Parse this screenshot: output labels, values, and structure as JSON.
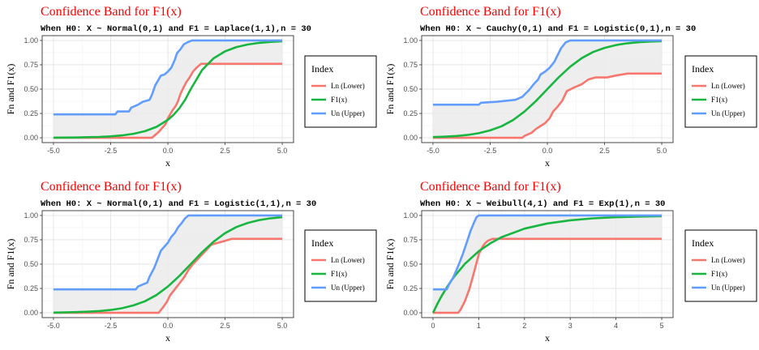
{
  "legend": {
    "title": "Index",
    "entries": [
      {
        "label": "Ln (Lower)",
        "color": "#f8766d"
      },
      {
        "label": "F1(x)",
        "color": "#18b640"
      },
      {
        "label": "Un (Upper)",
        "color": "#619cff"
      }
    ]
  },
  "colors": {
    "band_fill": "#ebebeb",
    "title": "#ff0000",
    "lower": "#f8766d",
    "f1": "#18b640",
    "upper": "#619cff"
  },
  "chart_data": [
    {
      "type": "line",
      "title": "Confidence Band for F1(x)",
      "subtitle": "When H0: X ~ Normal(0,1) and F1 = Laplace(1,1),n = 30",
      "xlabel": "x",
      "ylabel": "Fn and F1(x)",
      "xlim": [
        -5,
        5
      ],
      "ylim": [
        0,
        1
      ],
      "xticks": [
        -5,
        -2.5,
        0,
        2.5,
        5
      ],
      "xtick_labels": [
        "-5.0",
        "-2.5",
        "0.0",
        "2.5",
        "5.0"
      ],
      "yticks": [
        0,
        0.25,
        0.5,
        0.75,
        1
      ],
      "ytick_labels": [
        "0.00",
        "0.25",
        "0.50",
        "0.75",
        "1.00"
      ],
      "grid": true,
      "legend_position": "right",
      "series": [
        {
          "name": "Ln (Lower)",
          "x": [
            -5,
            -0.7,
            -0.55,
            -0.4,
            -0.25,
            -0.1,
            0.0,
            0.1,
            0.2,
            0.35,
            0.45,
            0.55,
            0.65,
            0.8,
            0.95,
            1.1,
            1.25,
            1.35,
            1.45,
            1.6,
            5
          ],
          "y": [
            0,
            0,
            0.03,
            0.06,
            0.1,
            0.14,
            0.2,
            0.24,
            0.28,
            0.33,
            0.38,
            0.45,
            0.5,
            0.57,
            0.62,
            0.68,
            0.72,
            0.74,
            0.76,
            0.76,
            0.76
          ]
        },
        {
          "name": "F1(x)",
          "x": [
            -5,
            -4.5,
            -4,
            -3.5,
            -3,
            -2.5,
            -2,
            -1.5,
            -1,
            -0.5,
            0,
            0.25,
            0.5,
            0.75,
            1,
            1.5,
            2,
            2.5,
            3,
            3.5,
            4,
            4.5,
            5
          ],
          "y": [
            0.001,
            0.002,
            0.003,
            0.006,
            0.009,
            0.015,
            0.025,
            0.041,
            0.068,
            0.112,
            0.184,
            0.236,
            0.303,
            0.389,
            0.5,
            0.697,
            0.816,
            0.888,
            0.932,
            0.959,
            0.975,
            0.985,
            0.991
          ]
        },
        {
          "name": "Un (Upper)",
          "x": [
            -5,
            -2.3,
            -2.2,
            -1.7,
            -1.6,
            -1.3,
            -1.1,
            -0.8,
            -0.7,
            -0.55,
            -0.4,
            -0.3,
            -0.15,
            0.0,
            0.15,
            0.3,
            0.4,
            0.55,
            0.7,
            0.85,
            1.05,
            1.3,
            1.5,
            5
          ],
          "y": [
            0.24,
            0.24,
            0.27,
            0.27,
            0.31,
            0.34,
            0.37,
            0.39,
            0.44,
            0.54,
            0.6,
            0.64,
            0.65,
            0.68,
            0.72,
            0.8,
            0.87,
            0.91,
            0.96,
            0.98,
            1.0,
            1.0,
            1.0,
            1.0
          ]
        }
      ]
    },
    {
      "type": "line",
      "title": "Confidence Band for F1(x)",
      "subtitle": "When H0: X ~ Cauchy(0,1) and F1 = Logistic(0,1),n = 30",
      "xlabel": "x",
      "ylabel": "Fn and F1(x)",
      "xlim": [
        -5,
        5
      ],
      "ylim": [
        0,
        1
      ],
      "xticks": [
        -5,
        -2.5,
        0,
        2.5,
        5
      ],
      "xtick_labels": [
        "-5.0",
        "-2.5",
        "0.0",
        "2.5",
        "5.0"
      ],
      "yticks": [
        0,
        0.25,
        0.5,
        0.75,
        1
      ],
      "ytick_labels": [
        "0.00",
        "0.25",
        "0.50",
        "0.75",
        "1.00"
      ],
      "grid": true,
      "legend_position": "right",
      "series": [
        {
          "name": "Ln (Lower)",
          "x": [
            -5,
            -1.1,
            -1.0,
            -0.7,
            -0.5,
            -0.3,
            -0.1,
            0.1,
            0.25,
            0.45,
            0.65,
            0.85,
            1.2,
            1.5,
            1.8,
            2.1,
            2.6,
            3.0,
            3.5,
            5
          ],
          "y": [
            0,
            0,
            0.02,
            0.05,
            0.09,
            0.12,
            0.15,
            0.2,
            0.27,
            0.32,
            0.38,
            0.48,
            0.52,
            0.55,
            0.6,
            0.62,
            0.62,
            0.64,
            0.66,
            0.66
          ]
        },
        {
          "name": "F1(x)",
          "x": [
            -5,
            -4.5,
            -4,
            -3.5,
            -3,
            -2.5,
            -2,
            -1.5,
            -1,
            -0.5,
            0,
            0.5,
            1,
            1.5,
            2,
            2.5,
            3,
            3.5,
            4,
            4.5,
            5
          ],
          "y": [
            0.007,
            0.011,
            0.018,
            0.029,
            0.047,
            0.076,
            0.119,
            0.182,
            0.269,
            0.378,
            0.5,
            0.622,
            0.731,
            0.818,
            0.881,
            0.924,
            0.953,
            0.971,
            0.982,
            0.989,
            0.993
          ]
        },
        {
          "name": "Un (Upper)",
          "x": [
            -5,
            -3.0,
            -2.9,
            -2.2,
            -1.4,
            -1.1,
            -0.8,
            -0.6,
            -0.4,
            -0.3,
            -0.1,
            0.1,
            0.3,
            0.45,
            0.6,
            0.8,
            1.0,
            5
          ],
          "y": [
            0.34,
            0.34,
            0.36,
            0.37,
            0.39,
            0.42,
            0.49,
            0.55,
            0.6,
            0.65,
            0.68,
            0.72,
            0.78,
            0.85,
            0.92,
            0.98,
            1.0,
            1.0
          ]
        }
      ]
    },
    {
      "type": "line",
      "title": "Confidence Band for F1(x)",
      "subtitle": "When H0: X ~ Normal(0,1) and F1 = Logistic(1,1),n = 30",
      "xlabel": "x",
      "ylabel": "Fn and F1(x)",
      "xlim": [
        -5,
        5
      ],
      "ylim": [
        0,
        1
      ],
      "xticks": [
        -5,
        -2.5,
        0,
        2.5,
        5
      ],
      "xtick_labels": [
        "-5.0",
        "-2.5",
        "0.0",
        "2.5",
        "5.0"
      ],
      "yticks": [
        0,
        0.25,
        0.5,
        0.75,
        1
      ],
      "ytick_labels": [
        "0.00",
        "0.25",
        "0.50",
        "0.75",
        "1.00"
      ],
      "grid": true,
      "legend_position": "right",
      "series": [
        {
          "name": "Ln (Lower)",
          "x": [
            -5,
            -0.4,
            -0.3,
            -0.2,
            -0.05,
            0.1,
            0.3,
            0.5,
            0.7,
            0.9,
            1.1,
            1.3,
            1.5,
            1.7,
            1.9,
            2.2,
            2.5,
            2.8,
            3.0,
            5
          ],
          "y": [
            0,
            0,
            0.03,
            0.06,
            0.11,
            0.18,
            0.24,
            0.3,
            0.36,
            0.44,
            0.5,
            0.55,
            0.6,
            0.65,
            0.7,
            0.72,
            0.74,
            0.76,
            0.76,
            0.76
          ]
        },
        {
          "name": "F1(x)",
          "x": [
            -5,
            -4.5,
            -4,
            -3.5,
            -3,
            -2.5,
            -2,
            -1.5,
            -1,
            -0.5,
            0,
            0.5,
            1,
            1.5,
            2,
            2.5,
            3,
            3.5,
            4,
            4.5,
            5
          ],
          "y": [
            0.002,
            0.004,
            0.007,
            0.011,
            0.018,
            0.029,
            0.047,
            0.076,
            0.119,
            0.182,
            0.269,
            0.378,
            0.5,
            0.622,
            0.731,
            0.818,
            0.881,
            0.924,
            0.953,
            0.971,
            0.982
          ]
        },
        {
          "name": "Un (Upper)",
          "x": [
            -5,
            -1.4,
            -1.3,
            -0.9,
            -0.8,
            -0.6,
            -0.5,
            -0.4,
            -0.3,
            -0.15,
            0.0,
            0.15,
            0.3,
            0.45,
            0.6,
            0.75,
            0.9,
            1.1,
            5
          ],
          "y": [
            0.24,
            0.24,
            0.27,
            0.31,
            0.37,
            0.46,
            0.52,
            0.58,
            0.64,
            0.68,
            0.72,
            0.78,
            0.82,
            0.88,
            0.92,
            0.97,
            1.0,
            1.0,
            1.0
          ]
        }
      ]
    },
    {
      "type": "line",
      "title": "Confidence Band for F1(x)",
      "subtitle": "When H0: X ~ Weibull(4,1) and F1 = Exp(1),n = 30",
      "xlabel": "x",
      "ylabel": "Fn and F1(x)",
      "xlim": [
        0,
        5
      ],
      "ylim": [
        0,
        1
      ],
      "xticks": [
        0,
        1,
        2,
        3,
        4,
        5
      ],
      "xtick_labels": [
        "0",
        "1",
        "2",
        "3",
        "4",
        "5"
      ],
      "yticks": [
        0,
        0.25,
        0.5,
        0.75,
        1
      ],
      "ytick_labels": [
        "0.00",
        "0.25",
        "0.50",
        "0.75",
        "1.00"
      ],
      "grid": true,
      "legend_position": "right",
      "series": [
        {
          "name": "Ln (Lower)",
          "x": [
            0,
            0.55,
            0.6,
            0.7,
            0.8,
            0.9,
            1.0,
            1.05,
            1.1,
            1.15,
            1.2,
            1.3,
            5
          ],
          "y": [
            0,
            0,
            0.03,
            0.12,
            0.25,
            0.42,
            0.6,
            0.65,
            0.69,
            0.72,
            0.74,
            0.76,
            0.76
          ]
        },
        {
          "name": "F1(x)",
          "x": [
            0,
            0.1,
            0.2,
            0.3,
            0.4,
            0.5,
            0.7,
            1.0,
            1.25,
            1.5,
            2.0,
            2.5,
            3.0,
            3.5,
            4.0,
            4.5,
            5
          ],
          "y": [
            0,
            0.095,
            0.181,
            0.259,
            0.33,
            0.393,
            0.503,
            0.632,
            0.713,
            0.777,
            0.865,
            0.918,
            0.95,
            0.97,
            0.982,
            0.989,
            0.993
          ]
        },
        {
          "name": "Un (Upper)",
          "x": [
            0,
            0.3,
            0.35,
            0.45,
            0.55,
            0.65,
            0.75,
            0.82,
            0.9,
            0.95,
            1.0,
            5
          ],
          "y": [
            0.24,
            0.24,
            0.29,
            0.37,
            0.48,
            0.6,
            0.74,
            0.84,
            0.93,
            0.98,
            1.0,
            1.0
          ]
        }
      ]
    }
  ]
}
